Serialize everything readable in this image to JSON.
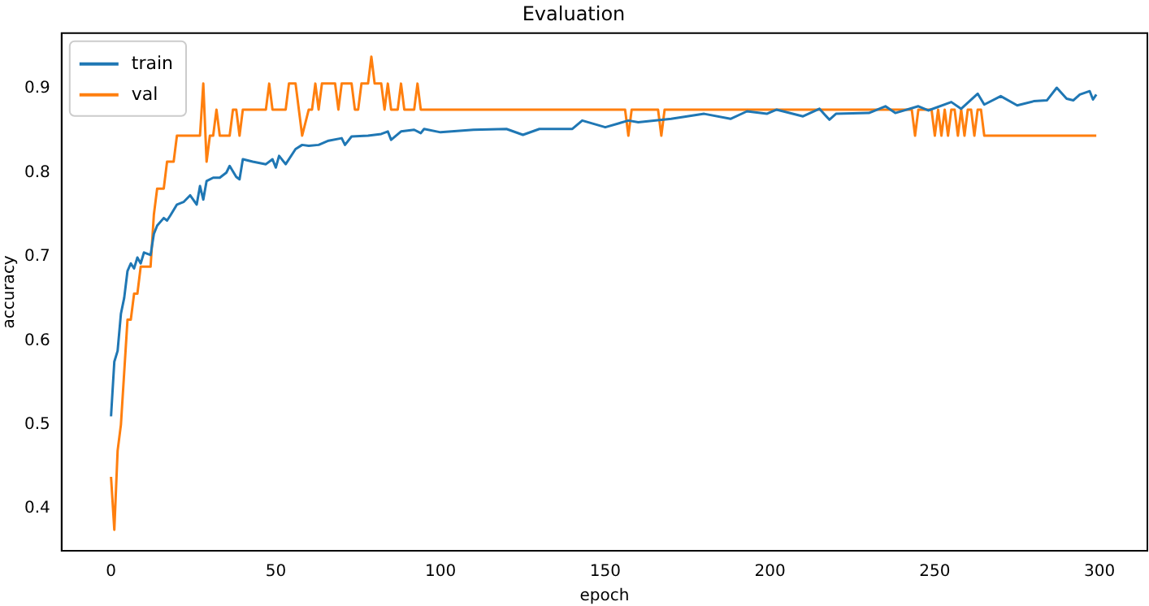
{
  "chart_data": {
    "type": "line",
    "title": "Evaluation",
    "xlabel": "epoch",
    "ylabel": "accuracy",
    "xlim": [
      -15,
      314.5
    ],
    "xticks": [
      0,
      50,
      100,
      150,
      200,
      250,
      300
    ],
    "ylim": [
      0.35,
      0.966
    ],
    "yticks": [
      0.4,
      0.5,
      0.6,
      0.7,
      0.8,
      0.9
    ],
    "grid": false,
    "legend": "top left",
    "marker": "none",
    "line_style": "solid",
    "series": [
      {
        "name": "train",
        "color": "#1f77b4",
        "x": [
          0,
          1,
          2,
          3,
          4,
          5,
          6,
          7,
          8,
          9,
          10,
          12,
          13,
          14,
          16,
          17,
          18,
          20,
          22,
          24,
          26,
          27,
          28,
          29,
          31,
          33,
          35,
          36,
          38,
          39,
          40,
          43,
          47,
          49,
          50,
          51,
          53,
          56,
          58,
          60,
          63,
          66,
          70,
          71,
          73,
          78,
          82,
          84,
          85,
          88,
          92,
          94,
          95,
          100,
          110,
          120,
          125,
          130,
          140,
          143,
          150,
          157,
          160,
          170,
          180,
          188,
          193,
          199,
          202,
          210,
          215,
          218,
          220,
          230,
          235,
          238,
          245,
          248,
          255,
          258,
          263,
          265,
          270,
          275,
          280,
          284,
          287,
          290,
          292,
          294,
          297,
          298,
          299
        ],
        "values": [
          0.51,
          0.575,
          0.588,
          0.632,
          0.651,
          0.683,
          0.692,
          0.686,
          0.699,
          0.692,
          0.705,
          0.702,
          0.727,
          0.737,
          0.746,
          0.743,
          0.749,
          0.762,
          0.765,
          0.773,
          0.762,
          0.784,
          0.768,
          0.79,
          0.794,
          0.794,
          0.8,
          0.808,
          0.795,
          0.792,
          0.816,
          0.813,
          0.81,
          0.816,
          0.806,
          0.82,
          0.81,
          0.828,
          0.833,
          0.832,
          0.833,
          0.838,
          0.841,
          0.833,
          0.843,
          0.844,
          0.846,
          0.849,
          0.839,
          0.849,
          0.851,
          0.847,
          0.852,
          0.848,
          0.851,
          0.852,
          0.845,
          0.852,
          0.852,
          0.862,
          0.854,
          0.862,
          0.86,
          0.864,
          0.87,
          0.864,
          0.873,
          0.87,
          0.875,
          0.867,
          0.876,
          0.863,
          0.87,
          0.871,
          0.879,
          0.871,
          0.879,
          0.874,
          0.884,
          0.876,
          0.894,
          0.881,
          0.891,
          0.88,
          0.885,
          0.886,
          0.901,
          0.888,
          0.886,
          0.893,
          0.897,
          0.887,
          0.893
        ]
      },
      {
        "name": "val",
        "color": "#ff7f0e",
        "x": [
          0,
          1,
          2,
          3,
          5,
          6,
          7,
          8,
          9,
          12,
          13,
          14,
          16,
          17,
          19,
          20,
          27,
          28,
          29,
          30,
          31,
          32,
          33,
          36,
          37,
          38,
          39,
          40,
          47,
          48,
          49,
          53,
          54,
          56,
          58,
          60,
          61,
          62,
          63,
          64,
          68,
          69,
          70,
          73,
          74,
          75,
          76,
          78,
          79,
          80,
          82,
          83,
          84,
          85,
          87,
          88,
          89,
          92,
          93,
          94,
          156,
          157,
          158,
          166,
          167,
          168,
          243,
          244,
          245,
          249,
          250,
          251,
          252,
          253,
          254,
          255,
          256,
          257,
          258,
          259,
          260,
          261,
          262,
          263,
          264,
          265,
          299
        ],
        "values": [
          0.438,
          0.375,
          0.469,
          0.5,
          0.625,
          0.625,
          0.656,
          0.656,
          0.688,
          0.688,
          0.75,
          0.781,
          0.781,
          0.813,
          0.813,
          0.844,
          0.844,
          0.906,
          0.813,
          0.844,
          0.844,
          0.875,
          0.844,
          0.844,
          0.875,
          0.875,
          0.844,
          0.875,
          0.875,
          0.906,
          0.875,
          0.875,
          0.906,
          0.906,
          0.844,
          0.875,
          0.875,
          0.906,
          0.875,
          0.906,
          0.906,
          0.875,
          0.906,
          0.906,
          0.875,
          0.875,
          0.906,
          0.906,
          0.938,
          0.906,
          0.906,
          0.875,
          0.906,
          0.875,
          0.875,
          0.906,
          0.875,
          0.875,
          0.906,
          0.875,
          0.875,
          0.844,
          0.875,
          0.875,
          0.844,
          0.875,
          0.875,
          0.844,
          0.875,
          0.875,
          0.844,
          0.875,
          0.844,
          0.875,
          0.844,
          0.875,
          0.875,
          0.844,
          0.875,
          0.844,
          0.875,
          0.875,
          0.844,
          0.875,
          0.875,
          0.844,
          0.844
        ]
      }
    ]
  }
}
